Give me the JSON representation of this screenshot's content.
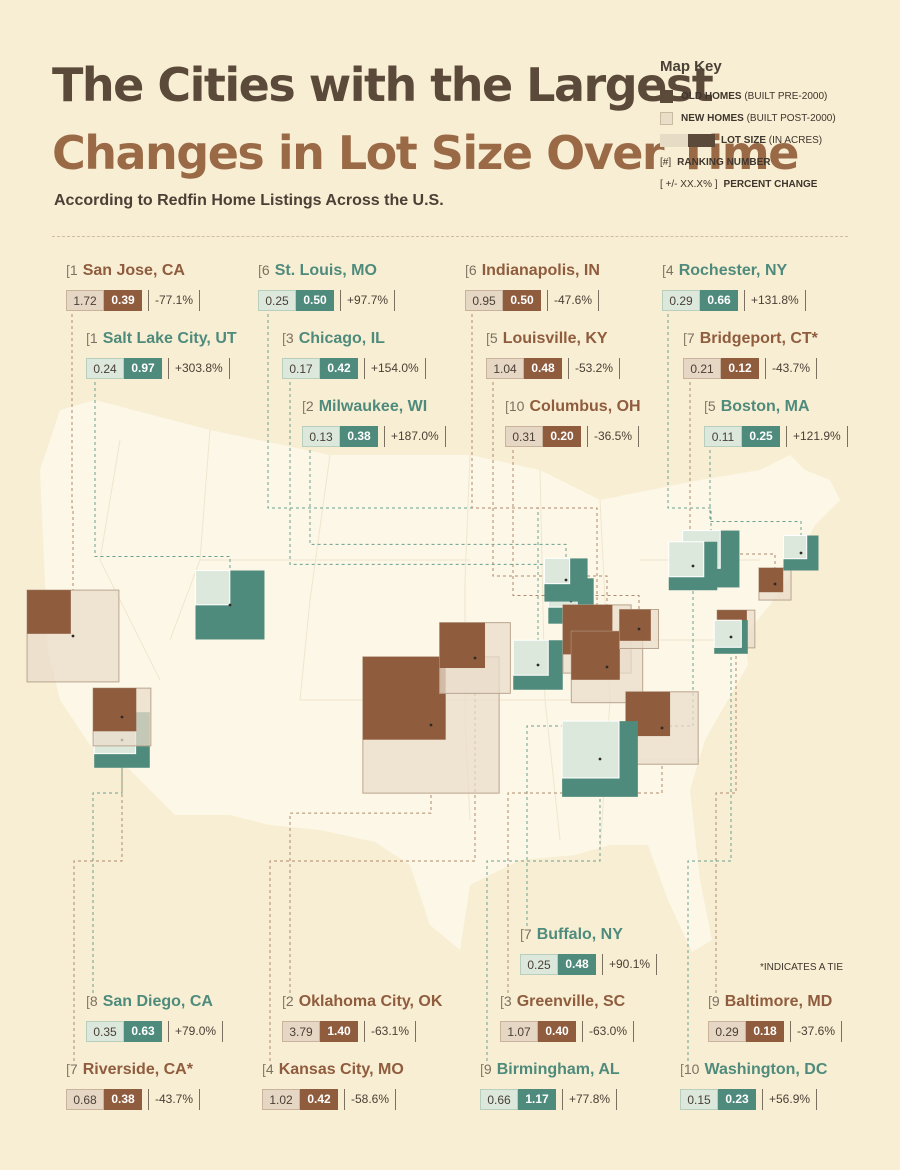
{
  "title_line1": "The Cities with the Largest",
  "title_line2": "Changes in Lot Size Over Time",
  "subtitle": "According to Redfin Home Listings Across the U.S.",
  "map_key": {
    "title": "Map Key",
    "old_label": "OLD HOMES",
    "old_sub": "(BUILT PRE-2000)",
    "new_label": "NEW HOMES",
    "new_sub": "(BUILT POST-2000)",
    "lot_label": "LOT SIZE",
    "lot_sub": "(IN ACRES)",
    "rank_box": "#",
    "rank_label": "RANKING NUMBER",
    "pct_box": "+/- XX.X%",
    "pct_label": "PERCENT CHANGE"
  },
  "tie_note": "*INDICATES A TIE",
  "colors": {
    "old_dark": "#8f5c3e",
    "old_light": "#e6d6c4",
    "new_dark": "#4f8b7c",
    "new_light": "#dde8dc",
    "land": "#fdf7e7",
    "background": "#f8eed3"
  },
  "cities": [
    {
      "id": "san-jose",
      "rank": "1",
      "name": "San Jose, CA",
      "old": "1.72",
      "new": "0.39",
      "pct": "-77.1%",
      "increase": false
    },
    {
      "id": "salt-lake-city",
      "rank": "1",
      "name": "Salt Lake City, UT",
      "old": "0.24",
      "new": "0.97",
      "pct": "+303.8%",
      "increase": true
    },
    {
      "id": "st-louis",
      "rank": "6",
      "name": "St. Louis, MO",
      "old": "0.25",
      "new": "0.50",
      "pct": "+97.7%",
      "increase": true
    },
    {
      "id": "chicago",
      "rank": "3",
      "name": "Chicago, IL",
      "old": "0.17",
      "new": "0.42",
      "pct": "+154.0%",
      "increase": true
    },
    {
      "id": "milwaukee",
      "rank": "2",
      "name": "Milwaukee, WI",
      "old": "0.13",
      "new": "0.38",
      "pct": "+187.0%",
      "increase": true
    },
    {
      "id": "indianapolis",
      "rank": "6",
      "name": "Indianapolis, IN",
      "old": "0.95",
      "new": "0.50",
      "pct": "-47.6%",
      "increase": false
    },
    {
      "id": "louisville",
      "rank": "5",
      "name": "Louisville, KY",
      "old": "1.04",
      "new": "0.48",
      "pct": "-53.2%",
      "increase": false
    },
    {
      "id": "columbus",
      "rank": "10",
      "name": "Columbus, OH",
      "old": "0.31",
      "new": "0.20",
      "pct": "-36.5%",
      "increase": false
    },
    {
      "id": "rochester",
      "rank": "4",
      "name": "Rochester, NY",
      "old": "0.29",
      "new": "0.66",
      "pct": "+131.8%",
      "increase": true
    },
    {
      "id": "bridgeport",
      "rank": "7",
      "name": "Bridgeport, CT*",
      "old": "0.21",
      "new": "0.12",
      "pct": "-43.7%",
      "increase": false
    },
    {
      "id": "boston",
      "rank": "5",
      "name": "Boston, MA",
      "old": "0.11",
      "new": "0.25",
      "pct": "+121.9%",
      "increase": true
    },
    {
      "id": "buffalo",
      "rank": "7",
      "name": "Buffalo, NY",
      "old": "0.25",
      "new": "0.48",
      "pct": "+90.1%",
      "increase": true
    },
    {
      "id": "san-diego",
      "rank": "8",
      "name": "San Diego, CA",
      "old": "0.35",
      "new": "0.63",
      "pct": "+79.0%",
      "increase": true
    },
    {
      "id": "oklahoma-city",
      "rank": "2",
      "name": "Oklahoma City, OK",
      "old": "3.79",
      "new": "1.40",
      "pct": "-63.1%",
      "increase": false
    },
    {
      "id": "greenville",
      "rank": "3",
      "name": "Greenville, SC",
      "old": "1.07",
      "new": "0.40",
      "pct": "-63.0%",
      "increase": false
    },
    {
      "id": "baltimore",
      "rank": "9",
      "name": "Baltimore, MD",
      "old": "0.29",
      "new": "0.18",
      "pct": "-37.6%",
      "increase": false
    },
    {
      "id": "riverside",
      "rank": "7",
      "name": "Riverside, CA*",
      "old": "0.68",
      "new": "0.38",
      "pct": "-43.7%",
      "increase": false
    },
    {
      "id": "kansas-city",
      "rank": "4",
      "name": "Kansas City, MO",
      "old": "1.02",
      "new": "0.42",
      "pct": "-58.6%",
      "increase": false
    },
    {
      "id": "birmingham",
      "rank": "9",
      "name": "Birmingham, AL",
      "old": "0.66",
      "new": "1.17",
      "pct": "+77.8%",
      "increase": true
    },
    {
      "id": "washington",
      "rank": "10",
      "name": "Washington, DC",
      "old": "0.15",
      "new": "0.23",
      "pct": "+56.9%",
      "increase": true
    }
  ]
}
